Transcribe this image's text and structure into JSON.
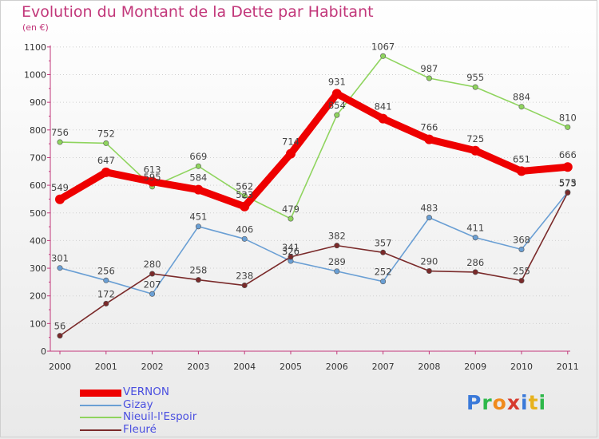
{
  "title": "Evolution du Montant de la Dette par Habitant",
  "unit": "(en €)",
  "logo": {
    "text": "Proxiti",
    "letter_colors": [
      "#3a79d9",
      "#2eb84a",
      "#f08a1c",
      "#d63a2e",
      "#3a79d9",
      "#e7b21c",
      "#2eb84a"
    ]
  },
  "chart_data": {
    "type": "line",
    "title": "Evolution du Montant de la Dette par Habitant",
    "ylabel": "(en €)",
    "xlabel": "",
    "ylim": [
      0,
      1100
    ],
    "yticks": [
      0,
      100,
      200,
      300,
      400,
      500,
      600,
      700,
      800,
      900,
      1000,
      1100
    ],
    "x": [
      "2000",
      "2001",
      "2002",
      "2003",
      "2004",
      "2005",
      "2006",
      "2007",
      "2008",
      "2009",
      "2010",
      "2011"
    ],
    "grid": "horizontal dotted",
    "legend_position": "bottom-left",
    "series": [
      {
        "name": "VERNON",
        "color": "#ee0000",
        "emphasis": true,
        "values": [
          549,
          647,
          613,
          584,
          523,
          714,
          931,
          841,
          766,
          725,
          651,
          666
        ],
        "labels": [
          "549",
          "647",
          "613",
          "584",
          "523",
          "714",
          "931",
          "841",
          "766",
          "725",
          "651",
          "666"
        ]
      },
      {
        "name": "Gizay",
        "color": "#6a9fd4",
        "emphasis": false,
        "values": [
          301,
          256,
          207,
          451,
          406,
          326,
          289,
          252,
          483,
          411,
          368,
          575
        ],
        "labels": [
          "301",
          "256",
          "207",
          "451",
          "406",
          "326",
          "289",
          "252",
          "483",
          "411",
          "368",
          "575"
        ]
      },
      {
        "name": "Nieuil-l'Espoir",
        "color": "#8fd45e",
        "emphasis": false,
        "values": [
          756,
          752,
          595,
          669,
          562,
          479,
          854,
          1067,
          987,
          955,
          884,
          810
        ],
        "labels": [
          "756",
          "752",
          "595",
          "669",
          "562",
          "479",
          "854",
          "1067",
          "987",
          "955",
          "884",
          "810"
        ]
      },
      {
        "name": "Fleuré",
        "color": "#7a2a2a",
        "emphasis": false,
        "values": [
          56,
          172,
          280,
          258,
          238,
          341,
          382,
          357,
          290,
          286,
          255,
          573
        ],
        "labels": [
          "56",
          "172",
          "280",
          "258",
          "238",
          "341",
          "382",
          "357",
          "290",
          "286",
          "255",
          "573"
        ]
      }
    ]
  }
}
